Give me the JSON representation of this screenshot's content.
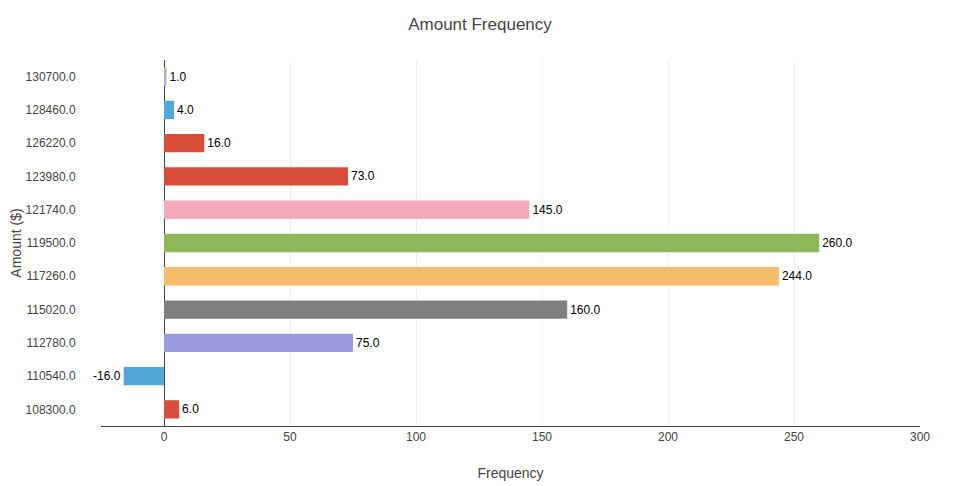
{
  "chart_data": {
    "type": "bar",
    "orientation": "horizontal",
    "title": "Amount Frequency",
    "xlabel": "Frequency",
    "ylabel": "Amount ($)",
    "categories": [
      "130700.0",
      "128460.0",
      "126220.0",
      "123980.0",
      "121740.0",
      "119500.0",
      "117260.0",
      "115020.0",
      "112780.0",
      "110540.0",
      "108300.0"
    ],
    "values": [
      1.0,
      4.0,
      16.0,
      73.0,
      145.0,
      260.0,
      244.0,
      160.0,
      75.0,
      -16.0,
      6.0
    ],
    "value_labels": [
      "1.0",
      "4.0",
      "16.0",
      "73.0",
      "145.0",
      "260.0",
      "244.0",
      "160.0",
      "75.0",
      "-16.0",
      "6.0"
    ],
    "data_labels": true,
    "colors": [
      "#b0aed4",
      "#4fa8d8",
      "#d94e3a",
      "#d94e3a",
      "#f4aab8",
      "#8db85a",
      "#f5bd6a",
      "#7f7f7f",
      "#9b9be0",
      "#4fa8d8",
      "#d94e3a"
    ],
    "xlim": [
      -25,
      300
    ],
    "xticks": [
      0,
      50,
      100,
      150,
      200,
      250,
      300
    ],
    "grid": true
  }
}
